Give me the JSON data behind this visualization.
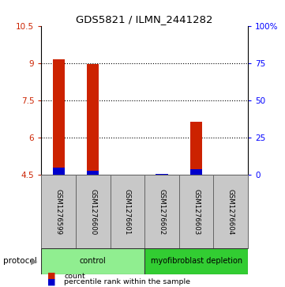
{
  "title": "GDS5821 / ILMN_2441282",
  "samples": [
    "GSM1276599",
    "GSM1276600",
    "GSM1276601",
    "GSM1276602",
    "GSM1276603",
    "GSM1276604"
  ],
  "red_values": [
    9.15,
    8.95,
    4.5,
    4.5,
    6.65,
    4.5
  ],
  "blue_percentile": [
    5,
    3,
    0,
    1,
    4,
    0
  ],
  "ylim_left": [
    4.5,
    10.5
  ],
  "ylim_right": [
    0,
    100
  ],
  "yticks_left": [
    4.5,
    6.0,
    7.5,
    9.0,
    10.5
  ],
  "yticks_right": [
    0,
    25,
    50,
    75,
    100
  ],
  "ytick_labels_left": [
    "4.5",
    "6",
    "7.5",
    "9",
    "10.5"
  ],
  "ytick_labels_right": [
    "0",
    "25",
    "50",
    "75",
    "100%"
  ],
  "groups": [
    {
      "label": "control",
      "start": 0,
      "end": 2,
      "color": "#90EE90"
    },
    {
      "label": "myofibroblast depletion",
      "start": 3,
      "end": 5,
      "color": "#32CD32"
    }
  ],
  "bar_width": 0.35,
  "red_color": "#CC2200",
  "blue_color": "#0000CC",
  "sample_box_color": "#C8C8C8",
  "legend_red": "count",
  "legend_blue": "percentile rank within the sample",
  "protocol_arrow_color": "#888888"
}
